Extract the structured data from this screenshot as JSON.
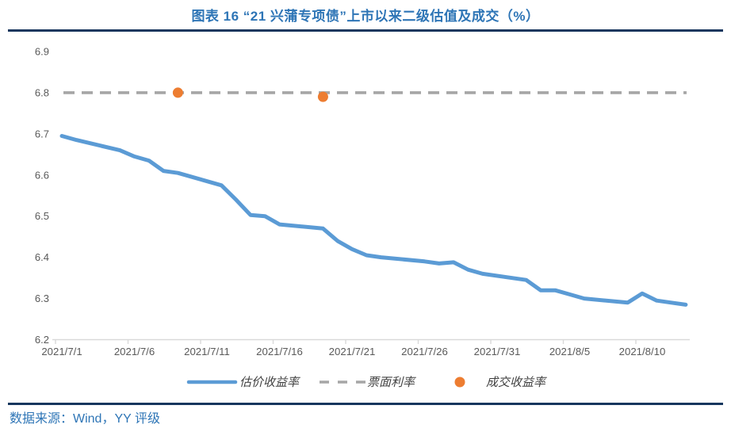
{
  "header": {
    "title": "图表 16 “21 兴蒲专项债”上市以来二级估值及成交（%）"
  },
  "footer": {
    "source": "数据来源：Wind，YY 评级"
  },
  "colors": {
    "title_blue": "#2E75B6",
    "rule_navy": "#17375E",
    "line_blue": "#5B9BD5",
    "coupon_gray": "#A6A6A6",
    "trade_orange": "#ED7D31",
    "axis_line": "#D9D9D9",
    "tick_label": "#595959",
    "legend_text": "#404040"
  },
  "chart_data": {
    "type": "line",
    "title": "图表 16 “21 兴蒲专项债”上市以来二级估值及成交（%）",
    "xlabel": "",
    "ylabel": "",
    "ylim": [
      6.2,
      6.9
    ],
    "y_ticks": [
      "6.9",
      "6.8",
      "6.7",
      "6.6",
      "6.5",
      "6.4",
      "6.3",
      "6.2"
    ],
    "x_tick_labels": [
      "2021/7/1",
      "2021/7/6",
      "2021/7/11",
      "2021/7/16",
      "2021/7/21",
      "2021/7/26",
      "2021/7/31",
      "2021/8/5",
      "2021/8/10"
    ],
    "x_range_days": [
      "2021/7/1",
      "2021/8/13"
    ],
    "grid": false,
    "legend_position": "bottom",
    "series": [
      {
        "name": "估价收益率",
        "kind": "line",
        "color": "#5B9BD5",
        "points": [
          [
            "2021/7/1",
            6.695
          ],
          [
            "2021/7/2",
            6.685
          ],
          [
            "2021/7/5",
            6.66
          ],
          [
            "2021/7/6",
            6.645
          ],
          [
            "2021/7/7",
            6.635
          ],
          [
            "2021/7/8",
            6.61
          ],
          [
            "2021/7/9",
            6.605
          ],
          [
            "2021/7/12",
            6.575
          ],
          [
            "2021/7/13",
            6.54
          ],
          [
            "2021/7/14",
            6.503
          ],
          [
            "2021/7/15",
            6.5
          ],
          [
            "2021/7/16",
            6.48
          ],
          [
            "2021/7/19",
            6.47
          ],
          [
            "2021/7/20",
            6.44
          ],
          [
            "2021/7/21",
            6.42
          ],
          [
            "2021/7/22",
            6.405
          ],
          [
            "2021/7/23",
            6.4
          ],
          [
            "2021/7/26",
            6.39
          ],
          [
            "2021/7/27",
            6.385
          ],
          [
            "2021/7/28",
            6.388
          ],
          [
            "2021/7/29",
            6.37
          ],
          [
            "2021/7/30",
            6.36
          ],
          [
            "2021/8/2",
            6.345
          ],
          [
            "2021/8/3",
            6.32
          ],
          [
            "2021/8/4",
            6.32
          ],
          [
            "2021/8/5",
            6.31
          ],
          [
            "2021/8/6",
            6.3
          ],
          [
            "2021/8/9",
            6.29
          ],
          [
            "2021/8/10",
            6.312
          ],
          [
            "2021/8/11",
            6.295
          ],
          [
            "2021/8/12",
            6.29
          ],
          [
            "2021/8/13",
            6.285
          ]
        ]
      },
      {
        "name": "票面利率",
        "kind": "dashed-constant",
        "color": "#A6A6A6",
        "value": 6.8
      },
      {
        "name": "成交收益率",
        "kind": "scatter",
        "color": "#ED7D31",
        "points": [
          [
            "2021/7/9",
            6.8
          ],
          [
            "2021/7/19",
            6.79
          ]
        ]
      }
    ]
  }
}
